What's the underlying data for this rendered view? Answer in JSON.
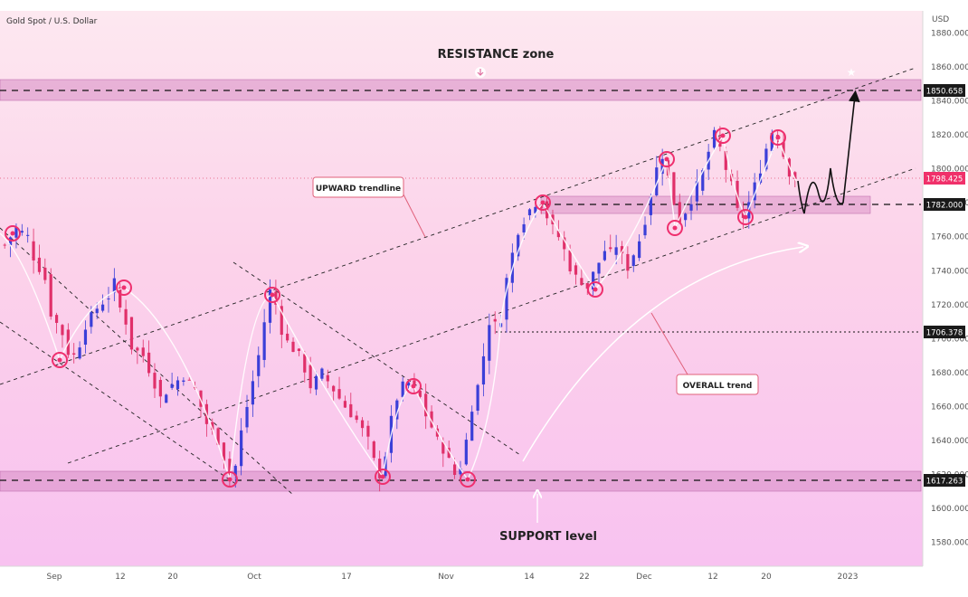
{
  "header": {
    "symbol_title": "Gold Spot / U.S. Dollar",
    "currency": "USD"
  },
  "chart_data": {
    "type": "candlestick",
    "title": "Gold Spot / U.S. Dollar",
    "y_unit": "USD",
    "ylim": [
      1566,
      1893
    ],
    "y_ticks": [
      "1880.000",
      "1860.000",
      "1840.000",
      "1820.000",
      "1800.000",
      "1780.000",
      "1760.000",
      "1740.000",
      "1720.000",
      "1700.000",
      "1680.000",
      "1660.000",
      "1640.000",
      "1620.000",
      "1600.000",
      "1580.000"
    ],
    "x_ticks": [
      "Sep",
      "12",
      "20",
      "Oct",
      "17",
      "Nov",
      "14",
      "22",
      "Dec",
      "12",
      "20",
      "2023"
    ],
    "price_labels": {
      "resistance": "1850.658",
      "current": "1798.425",
      "zone": "1782.000",
      "mid": "1706.378",
      "support": "1617.263"
    },
    "annotations": {
      "resistance": "RESISTANCE zone",
      "support": "SUPPORT level",
      "upward": "UPWARD trendline",
      "overall": "OVERALL trend"
    },
    "close_path": [
      [
        0,
        1755
      ],
      [
        2,
        1765
      ],
      [
        4,
        1760
      ],
      [
        5,
        1748
      ],
      [
        7,
        1735
      ],
      [
        8,
        1715
      ],
      [
        10,
        1703
      ],
      [
        11,
        1692
      ],
      [
        12,
        1690
      ],
      [
        13,
        1697
      ],
      [
        14,
        1708
      ],
      [
        16,
        1718
      ],
      [
        18,
        1725
      ],
      [
        19,
        1733
      ],
      [
        20,
        1718
      ],
      [
        21,
        1710
      ],
      [
        22,
        1695
      ],
      [
        24,
        1690
      ],
      [
        25,
        1682
      ],
      [
        27,
        1665
      ],
      [
        29,
        1673
      ],
      [
        31,
        1678
      ],
      [
        33,
        1670
      ],
      [
        34,
        1660
      ],
      [
        35,
        1650
      ],
      [
        37,
        1640
      ],
      [
        38,
        1630
      ],
      [
        39,
        1620
      ],
      [
        40,
        1625
      ],
      [
        41,
        1645
      ],
      [
        42,
        1660
      ],
      [
        44,
        1690
      ],
      [
        45,
        1710
      ],
      [
        46,
        1728
      ],
      [
        47,
        1720
      ],
      [
        48,
        1705
      ],
      [
        49,
        1698
      ],
      [
        51,
        1690
      ],
      [
        52,
        1682
      ],
      [
        53,
        1672
      ],
      [
        54,
        1676
      ],
      [
        55,
        1680
      ],
      [
        57,
        1670
      ],
      [
        59,
        1660
      ],
      [
        61,
        1652
      ],
      [
        63,
        1640
      ],
      [
        64,
        1628
      ],
      [
        65,
        1620
      ],
      [
        66,
        1632
      ],
      [
        67,
        1652
      ],
      [
        68,
        1665
      ],
      [
        69,
        1672
      ],
      [
        70,
        1674
      ],
      [
        71,
        1670
      ],
      [
        72,
        1665
      ],
      [
        73,
        1655
      ],
      [
        74,
        1648
      ],
      [
        75,
        1640
      ],
      [
        76,
        1635
      ],
      [
        77,
        1628
      ],
      [
        78,
        1620
      ],
      [
        79,
        1625
      ],
      [
        80,
        1640
      ],
      [
        81,
        1660
      ],
      [
        82,
        1672
      ],
      [
        83,
        1690
      ],
      [
        84,
        1710
      ],
      [
        85,
        1708
      ],
      [
        86,
        1712
      ],
      [
        87,
        1735
      ],
      [
        88,
        1750
      ],
      [
        89,
        1764
      ],
      [
        90,
        1770
      ],
      [
        91,
        1776
      ],
      [
        92,
        1780
      ],
      [
        93,
        1779
      ],
      [
        94,
        1772
      ],
      [
        95,
        1765
      ],
      [
        96,
        1760
      ],
      [
        97,
        1752
      ],
      [
        98,
        1742
      ],
      [
        99,
        1736
      ],
      [
        100,
        1734
      ],
      [
        101,
        1730
      ],
      [
        102,
        1738
      ],
      [
        103,
        1745
      ],
      [
        104,
        1752
      ],
      [
        105,
        1750
      ],
      [
        106,
        1755
      ],
      [
        107,
        1748
      ],
      [
        108,
        1742
      ],
      [
        109,
        1750
      ],
      [
        110,
        1758
      ],
      [
        111,
        1770
      ],
      [
        112,
        1785
      ],
      [
        113,
        1800
      ],
      [
        114,
        1808
      ],
      [
        115,
        1795
      ],
      [
        116,
        1780
      ],
      [
        117,
        1770
      ],
      [
        118,
        1775
      ],
      [
        119,
        1782
      ],
      [
        120,
        1790
      ],
      [
        121,
        1798
      ],
      [
        122,
        1810
      ],
      [
        123,
        1820
      ],
      [
        124,
        1812
      ],
      [
        125,
        1800
      ],
      [
        126,
        1790
      ],
      [
        127,
        1775
      ],
      [
        128,
        1772
      ],
      [
        129,
        1780
      ],
      [
        130,
        1790
      ],
      [
        131,
        1800
      ],
      [
        132,
        1812
      ],
      [
        133,
        1822
      ],
      [
        134,
        1818
      ],
      [
        135,
        1808
      ],
      [
        136,
        1798
      ],
      [
        137,
        1795
      ]
    ]
  }
}
